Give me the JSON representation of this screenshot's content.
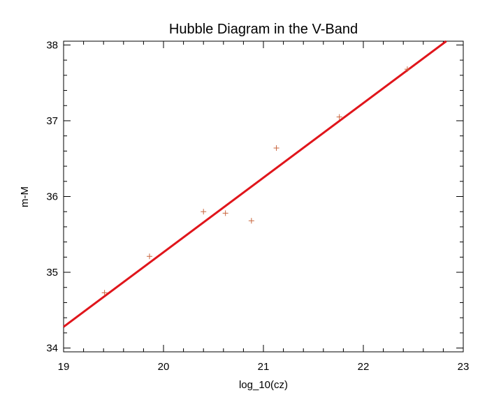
{
  "chart_data": {
    "type": "scatter",
    "title": "Hubble Diagram in the V-Band",
    "xlabel": "log_10(cz)",
    "ylabel": "m-M",
    "xlim": [
      19,
      23
    ],
    "ylim": [
      33.95,
      38.05
    ],
    "x_ticks": [
      19,
      20,
      21,
      22,
      23
    ],
    "x_tick_labels": [
      "19",
      "20",
      "21",
      "22",
      "23"
    ],
    "x_minor_step": 0.2,
    "y_ticks": [
      34,
      35,
      36,
      37,
      38
    ],
    "y_tick_labels": [
      "34",
      "35",
      "36",
      "37",
      "38"
    ],
    "y_minor_step": 0.2,
    "grid": false,
    "series": [
      {
        "kind": "points",
        "marker": "plus",
        "color": "#c8643c",
        "x": [
          19.41,
          19.86,
          20.4,
          20.62,
          20.88,
          21.13,
          21.76,
          22.44
        ],
        "y": [
          34.73,
          35.21,
          35.8,
          35.78,
          35.68,
          36.64,
          37.05,
          37.68
        ]
      },
      {
        "kind": "fit-line",
        "color": "#e0151b",
        "x": [
          19.0,
          22.83
        ],
        "y": [
          34.28,
          38.05
        ]
      }
    ]
  }
}
